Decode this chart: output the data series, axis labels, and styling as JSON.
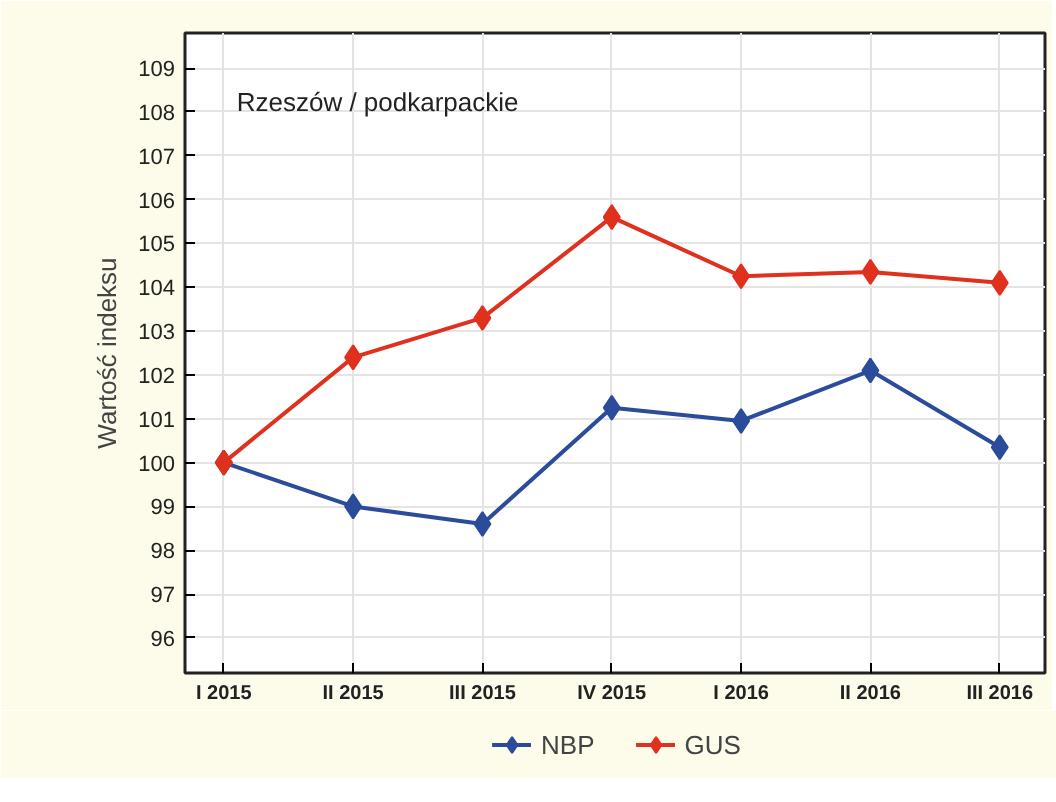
{
  "chart_data": {
    "type": "line",
    "ylabel": "Wartość indeksu",
    "annotations": [
      "Rzeszów / podkarpackie"
    ],
    "categories": [
      "I 2015",
      "II 2015",
      "III 2015",
      "IV 2015",
      "I 2016",
      "II 2016",
      "III 2016"
    ],
    "series": [
      {
        "name": "NBP",
        "color": "#2b4c9b",
        "values": [
          100,
          99.0,
          98.6,
          101.25,
          100.95,
          102.1,
          100.35
        ]
      },
      {
        "name": "GUS",
        "color": "#e0301e",
        "values": [
          100,
          102.4,
          103.3,
          105.6,
          104.25,
          104.35,
          104.1
        ]
      }
    ],
    "ylim": [
      95.2,
      109.8
    ],
    "yticks": [
      96,
      97,
      98,
      99,
      100,
      101,
      102,
      103,
      104,
      105,
      106,
      107,
      108,
      109
    ],
    "grid": true,
    "legend": "bottom",
    "marker": "diamond",
    "line_style": "solid"
  }
}
